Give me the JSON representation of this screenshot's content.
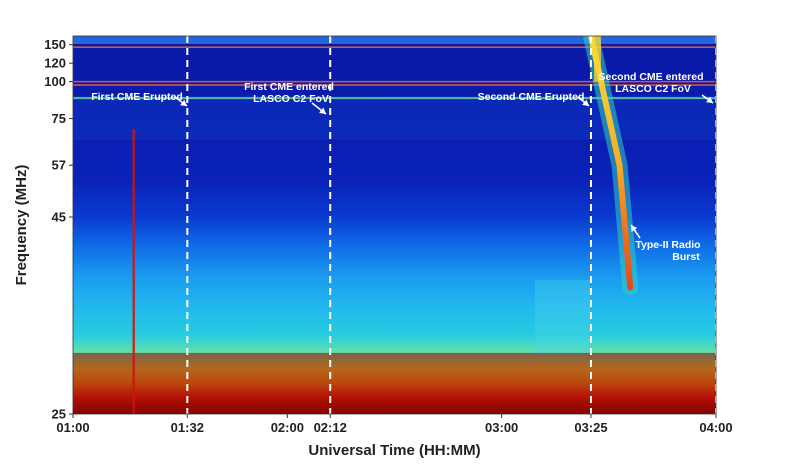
{
  "chart_data": {
    "type": "heatmap",
    "title": "",
    "xlabel": "Universal Time (HH:MM)",
    "ylabel": "Frequency (MHz)",
    "x_range": [
      "01:00",
      "04:00"
    ],
    "y_range_mhz": [
      25,
      170
    ],
    "x_ticks": [
      "01:00",
      "01:32",
      "02:00",
      "02:12",
      "03:00",
      "03:25",
      "04:00"
    ],
    "y_ticks": [
      "25",
      "45",
      "57",
      "75",
      "100",
      "120",
      "150"
    ],
    "colormap": "jet",
    "event_markers": [
      {
        "time": "01:32",
        "style": "white dashed line"
      },
      {
        "time": "02:12",
        "style": "white dashed line"
      },
      {
        "time": "03:25",
        "style": "white dashed line"
      },
      {
        "time": "04:00",
        "style": "white dashed line"
      }
    ],
    "annotations": [
      {
        "text": "First CME Erupted",
        "time": "01:32"
      },
      {
        "text": "First CME entered",
        "text2": "LASCO C2 FoV",
        "time": "02:12"
      },
      {
        "text": "Second CME Erupted",
        "time": "03:25"
      },
      {
        "text": "Second CME entered",
        "text2": "LASCO C2 FoV",
        "time": "04:00"
      },
      {
        "text": "Type-II Radio",
        "text2": "Burst"
      }
    ],
    "features": {
      "type_ii_burst_drift": [
        {
          "time": "03:25",
          "freq_mhz": 170
        },
        {
          "time": "03:33",
          "freq_mhz": 57
        },
        {
          "time": "03:36",
          "freq_mhz": 35
        }
      ],
      "intense_band_mhz": [
        25,
        29
      ],
      "rfi_lines_mhz": [
        145,
        100,
        97,
        87
      ]
    }
  }
}
